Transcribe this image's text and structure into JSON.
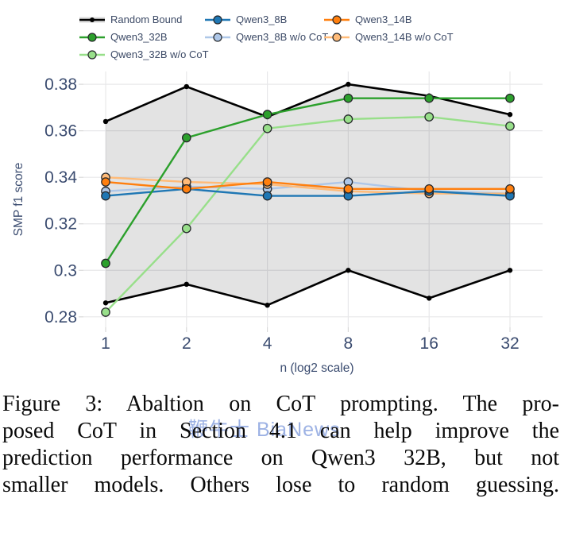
{
  "legend": {
    "items": [
      {
        "label": "Random Bound",
        "color": "#000000",
        "band_fill": "#dcdcdc",
        "type": "band"
      },
      {
        "label": "Qwen3_8B",
        "color": "#1f77b4",
        "type": "line"
      },
      {
        "label": "Qwen3_14B",
        "color": "#ff7f0e",
        "type": "line"
      },
      {
        "label": "Qwen3_32B",
        "color": "#2ca02c",
        "type": "line"
      },
      {
        "label": "Qwen3_8B w/o CoT",
        "color": "#aec7e8",
        "type": "line"
      },
      {
        "label": "Qwen3_14B w/o CoT",
        "color": "#ffbb78",
        "type": "line"
      },
      {
        "label": "Qwen3_32B w/o CoT",
        "color": "#98df8a",
        "type": "line"
      }
    ]
  },
  "chart_data": {
    "type": "line",
    "x": [
      1,
      2,
      4,
      8,
      16,
      32
    ],
    "x_scale": "log2",
    "xtick_labels": [
      "1",
      "2",
      "4",
      "8",
      "16",
      "32"
    ],
    "yticks": [
      0.28,
      0.3,
      0.32,
      0.34,
      0.36,
      0.38
    ],
    "ytick_labels": [
      "0.28",
      "0.3",
      "0.32",
      "0.34",
      "0.36",
      "0.38"
    ],
    "ylim": [
      0.2755,
      0.3855
    ],
    "xlabel": "n (log2 scale)",
    "ylabel": "SMP f1 score",
    "grid": true,
    "legend_position": "top",
    "band": {
      "name": "Random Bound",
      "upper": [
        0.364,
        0.379,
        0.366,
        0.38,
        0.375,
        0.367
      ],
      "lower": [
        0.286,
        0.294,
        0.285,
        0.3,
        0.288,
        0.3
      ],
      "line_color": "#000000",
      "fill_color": "rgba(0,0,0,0.11)"
    },
    "series": [
      {
        "name": "Qwen3_8B",
        "color": "#1f77b4",
        "values": [
          0.332,
          0.335,
          0.332,
          0.332,
          0.334,
          0.332
        ]
      },
      {
        "name": "Qwen3_14B",
        "color": "#ff7f0e",
        "values": [
          0.338,
          0.335,
          0.338,
          0.335,
          0.335,
          0.335
        ]
      },
      {
        "name": "Qwen3_32B",
        "color": "#2ca02c",
        "values": [
          0.303,
          0.357,
          0.367,
          0.374,
          0.374,
          0.374
        ]
      },
      {
        "name": "Qwen3_8B w/o CoT",
        "color": "#aec7e8",
        "values": [
          0.334,
          0.336,
          0.335,
          0.338,
          0.334,
          0.333
        ]
      },
      {
        "name": "Qwen3_14B w/o CoT",
        "color": "#ffbb78",
        "values": [
          0.34,
          0.338,
          0.337,
          0.334,
          0.333,
          0.333
        ]
      },
      {
        "name": "Qwen3_32B w/o CoT",
        "color": "#98df8a",
        "values": [
          0.282,
          0.318,
          0.361,
          0.365,
          0.366,
          0.362
        ]
      }
    ],
    "colors": {
      "grid": "#e8e8ea",
      "tick_mark": "#d9d9d9",
      "text": "#3b4c70",
      "marker_outline": "#26282b"
    }
  },
  "caption": {
    "lines": [
      "Figure 3: Abaltion on CoT prompting. The pro-",
      "posed CoT in Section 4.1 can help improve the",
      "prediction performance on Qwen3 32B, but not",
      "smaller models. Others lose to random guessing."
    ]
  },
  "watermark": {
    "text": "鞭牛士 BiaNews",
    "color": "#8ca5e0"
  }
}
